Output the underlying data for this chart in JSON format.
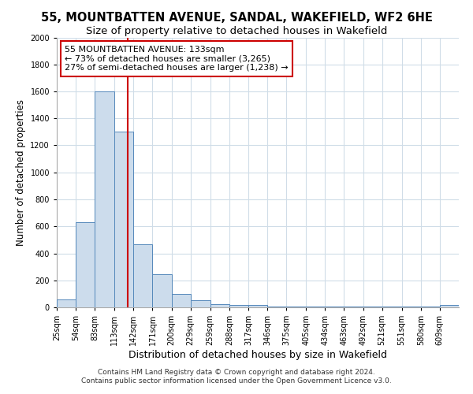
{
  "title": "55, MOUNTBATTEN AVENUE, SANDAL, WAKEFIELD, WF2 6HE",
  "subtitle": "Size of property relative to detached houses in Wakefield",
  "xlabel": "Distribution of detached houses by size in Wakefield",
  "ylabel": "Number of detached properties",
  "bin_labels": [
    "25sqm",
    "54sqm",
    "83sqm",
    "113sqm",
    "142sqm",
    "171sqm",
    "200sqm",
    "229sqm",
    "259sqm",
    "288sqm",
    "317sqm",
    "346sqm",
    "375sqm",
    "405sqm",
    "434sqm",
    "463sqm",
    "492sqm",
    "521sqm",
    "551sqm",
    "580sqm",
    "609sqm"
  ],
  "bin_edges": [
    25,
    54,
    83,
    113,
    142,
    171,
    200,
    229,
    259,
    288,
    317,
    346,
    375,
    405,
    434,
    463,
    492,
    521,
    551,
    580,
    609,
    638
  ],
  "bar_heights": [
    60,
    630,
    1600,
    1300,
    470,
    245,
    100,
    50,
    25,
    20,
    15,
    5,
    5,
    5,
    5,
    5,
    5,
    5,
    5,
    5,
    20
  ],
  "bar_color": "#ccdcec",
  "bar_edge_color": "#5588bb",
  "vline_x": 133,
  "vline_color": "#cc0000",
  "annotation_title": "55 MOUNTBATTEN AVENUE: 133sqm",
  "annotation_line1": "← 73% of detached houses are smaller (3,265)",
  "annotation_line2": "27% of semi-detached houses are larger (1,238) →",
  "annotation_box_color": "#ffffff",
  "annotation_box_edge_color": "#cc0000",
  "ylim": [
    0,
    2000
  ],
  "yticks": [
    0,
    200,
    400,
    600,
    800,
    1000,
    1200,
    1400,
    1600,
    1800,
    2000
  ],
  "footer1": "Contains HM Land Registry data © Crown copyright and database right 2024.",
  "footer2": "Contains public sector information licensed under the Open Government Licence v3.0.",
  "title_fontsize": 10.5,
  "subtitle_fontsize": 9.5,
  "xlabel_fontsize": 9,
  "ylabel_fontsize": 8.5,
  "tick_fontsize": 7,
  "annotation_fontsize": 8,
  "footer_fontsize": 6.5,
  "grid_color": "#d0dde8"
}
